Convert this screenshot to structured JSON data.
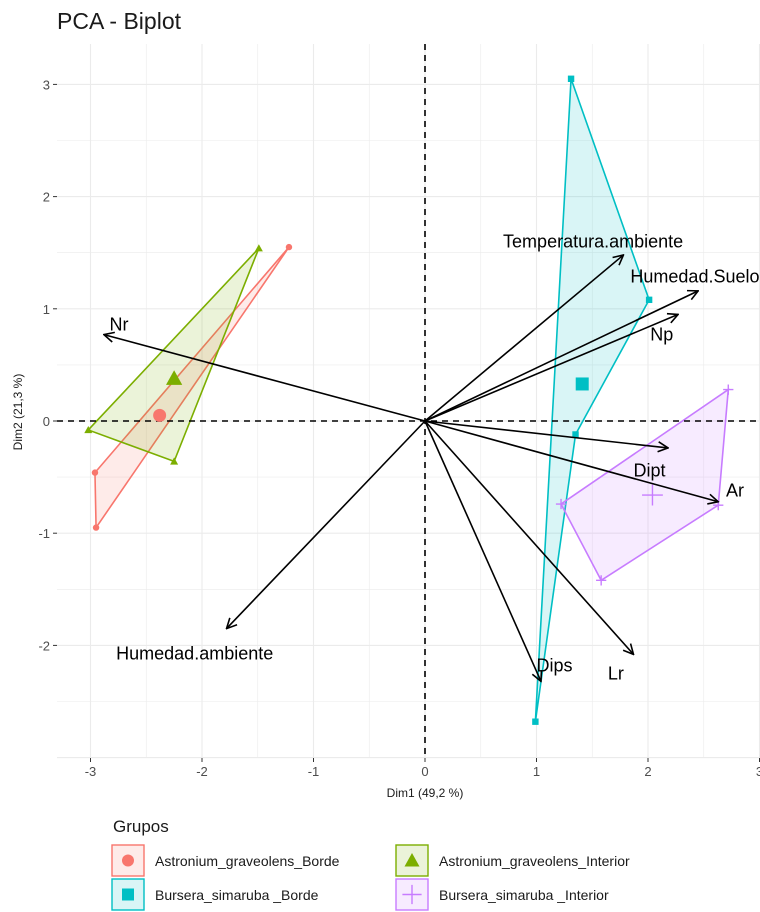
{
  "chart_data": {
    "type": "scatter",
    "title": "PCA - Biplot",
    "xlabel": "Dim1 (49,2 %)",
    "ylabel": "Dim2 (21,3 %)",
    "xlim": [
      -3.3,
      3.0
    ],
    "ylim": [
      -2.9,
      3.35
    ],
    "xticks": [
      -3,
      -2,
      -1,
      0,
      1,
      2,
      3
    ],
    "xtick_labels": [
      "-3",
      "-2",
      "-1",
      "0",
      "1",
      "2",
      "3"
    ],
    "yticks": [
      -2,
      -1,
      0,
      1,
      2,
      3
    ],
    "ytick_labels": [
      "-2",
      "-1",
      "0",
      "1",
      "2",
      "3"
    ],
    "grid": true,
    "legend": {
      "title": "Grupos",
      "position": "bottom"
    },
    "groups": [
      {
        "name": "Astronium_graveolens_Borde",
        "color": "#F8766D",
        "shape": "circle",
        "points": [
          [
            -1.22,
            1.55
          ],
          [
            -2.96,
            -0.46
          ],
          [
            -2.95,
            -0.95
          ]
        ],
        "centroid": [
          -2.38,
          0.05
        ]
      },
      {
        "name": "Bursera_simaruba _Borde",
        "color": "#00BFC4",
        "shape": "square",
        "points": [
          [
            1.31,
            3.05
          ],
          [
            2.01,
            1.08
          ],
          [
            1.35,
            -0.12
          ],
          [
            0.99,
            -2.68
          ]
        ],
        "centroid": [
          1.41,
          0.33
        ]
      },
      {
        "name": "Astronium_graveolens_Interior",
        "color": "#7CAE00",
        "shape": "triangle",
        "points": [
          [
            -1.49,
            1.54
          ],
          [
            -3.02,
            -0.08
          ],
          [
            -2.25,
            -0.36
          ]
        ],
        "centroid": [
          -2.25,
          0.38
        ]
      },
      {
        "name": "Bursera_simaruba _Interior",
        "color": "#C77CFF",
        "shape": "cross",
        "points": [
          [
            2.72,
            0.28
          ],
          [
            1.22,
            -0.74
          ],
          [
            1.58,
            -1.42
          ],
          [
            2.63,
            -0.75
          ]
        ],
        "centroid": [
          2.04,
          -0.66
        ]
      }
    ],
    "variables": [
      {
        "name": "Temperatura.ambiente",
        "x": 1.78,
        "y": 1.48
      },
      {
        "name": "Humedad.Suelo",
        "x": 2.45,
        "y": 1.16
      },
      {
        "name": "Np",
        "x": 2.27,
        "y": 0.95
      },
      {
        "name": "Nr",
        "x": -2.88,
        "y": 0.77
      },
      {
        "name": "Dipt",
        "x": 2.18,
        "y": -0.24
      },
      {
        "name": "Ar",
        "x": 2.63,
        "y": -0.72
      },
      {
        "name": "Humedad.ambiente",
        "x": -1.78,
        "y": -1.85
      },
      {
        "name": "Dips",
        "x": 1.04,
        "y": -2.32
      },
      {
        "name": "Lr",
        "x": 1.87,
        "y": -2.08
      }
    ]
  }
}
